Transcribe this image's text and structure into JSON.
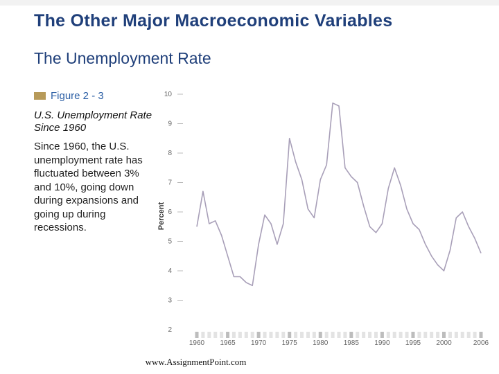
{
  "slide": {
    "title": "The Other Major Macroeconomic Variables",
    "subtitle": "The Unemployment Rate",
    "figure_label": "Figure 2 - 3",
    "figure_title_line1": "U.S. Unemployment Rate",
    "figure_title_line2": "Since 1960",
    "caption": "Since 1960, the U.S. unemployment rate has fluctuated between 3% and 10%, going down during expansions and going up during recessions.",
    "footer_url": "www.AssignmentPoint.com"
  },
  "colors": {
    "title": "#1f3f7a",
    "line": "#a89fb8",
    "figure_swatch": "#b79a59",
    "figure_label": "#2c5fa5"
  },
  "chart_data": {
    "type": "line",
    "title": "",
    "xlabel": "",
    "ylabel": "Percent",
    "ylim": [
      2,
      10
    ],
    "y_ticks": [
      2,
      3,
      4,
      5,
      6,
      7,
      8,
      9,
      10
    ],
    "x_ticks": [
      1960,
      1965,
      1970,
      1975,
      1980,
      1985,
      1990,
      1995,
      2000,
      2006
    ],
    "grid": false,
    "series": [
      {
        "name": "",
        "x": [
          1960,
          1961,
          1962,
          1963,
          1964,
          1965,
          1966,
          1967,
          1968,
          1969,
          1970,
          1971,
          1972,
          1973,
          1974,
          1975,
          1976,
          1977,
          1978,
          1979,
          1980,
          1981,
          1982,
          1983,
          1984,
          1985,
          1986,
          1987,
          1988,
          1989,
          1990,
          1991,
          1992,
          1993,
          1994,
          1995,
          1996,
          1997,
          1998,
          1999,
          2000,
          2001,
          2002,
          2003,
          2004,
          2005,
          2006
        ],
        "values": [
          5.5,
          6.7,
          5.6,
          5.7,
          5.2,
          4.5,
          3.8,
          3.8,
          3.6,
          3.5,
          4.9,
          5.9,
          5.6,
          4.9,
          5.6,
          8.5,
          7.7,
          7.1,
          6.1,
          5.8,
          7.1,
          7.6,
          9.7,
          9.6,
          7.5,
          7.2,
          7.0,
          6.2,
          5.5,
          5.3,
          5.6,
          6.8,
          7.5,
          6.9,
          6.1,
          5.6,
          5.4,
          4.9,
          4.5,
          4.2,
          4.0,
          4.7,
          5.8,
          6.0,
          5.5,
          5.1,
          4.6
        ]
      }
    ]
  }
}
